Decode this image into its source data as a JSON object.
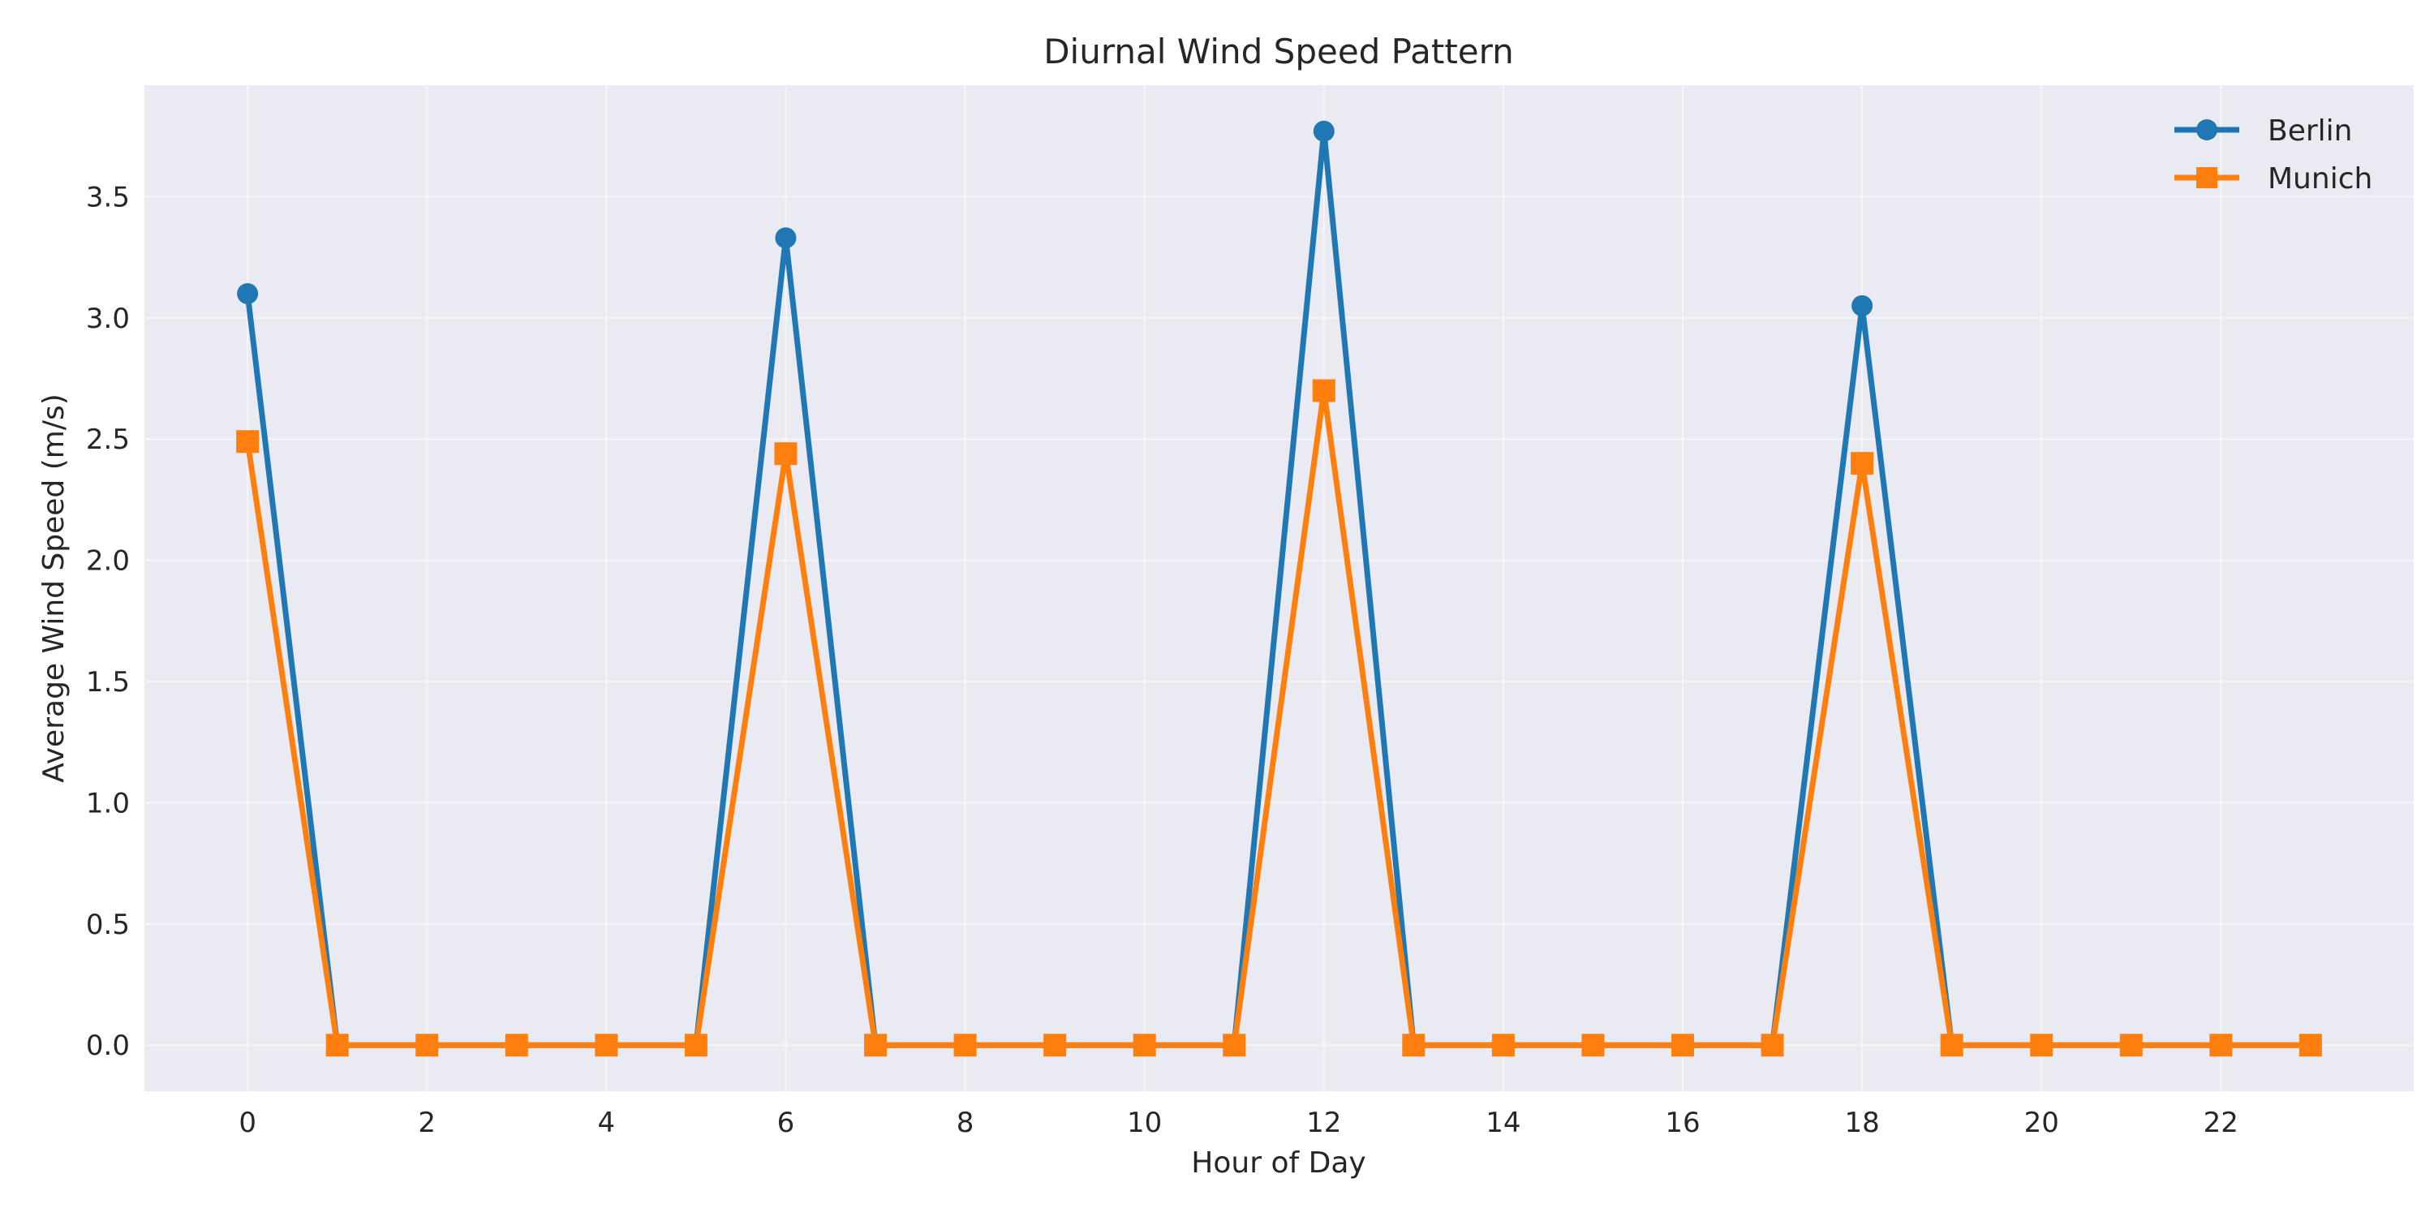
{
  "chart_data": {
    "type": "line",
    "title": "Diurnal Wind Speed Pattern",
    "xlabel": "Hour of Day",
    "ylabel": "Average Wind Speed (m/s)",
    "x": [
      0,
      1,
      2,
      3,
      4,
      5,
      6,
      7,
      8,
      9,
      10,
      11,
      12,
      13,
      14,
      15,
      16,
      17,
      18,
      19,
      20,
      21,
      22,
      23
    ],
    "xticks": [
      0,
      2,
      4,
      6,
      8,
      10,
      12,
      14,
      16,
      18,
      20,
      22
    ],
    "yticks": [
      0.0,
      0.5,
      1.0,
      1.5,
      2.0,
      2.5,
      3.0,
      3.5
    ],
    "xlim": [
      -1.15,
      24.15
    ],
    "ylim": [
      -0.19,
      3.96
    ],
    "grid": true,
    "legend_position": "top-right",
    "series": [
      {
        "name": "Berlin",
        "color": "#1f77b4",
        "marker": "circle",
        "values": [
          3.1,
          0,
          0,
          0,
          0,
          0,
          3.33,
          0,
          0,
          0,
          0,
          0,
          3.77,
          0,
          0,
          0,
          0,
          0,
          3.05,
          0,
          0,
          0,
          0,
          0
        ]
      },
      {
        "name": "Munich",
        "color": "#ff7f0e",
        "marker": "square",
        "values": [
          2.49,
          0,
          0,
          0,
          0,
          0,
          2.44,
          0,
          0,
          0,
          0,
          0,
          2.7,
          0,
          0,
          0,
          0,
          0,
          2.4,
          0,
          0,
          0,
          0,
          0
        ]
      }
    ]
  }
}
